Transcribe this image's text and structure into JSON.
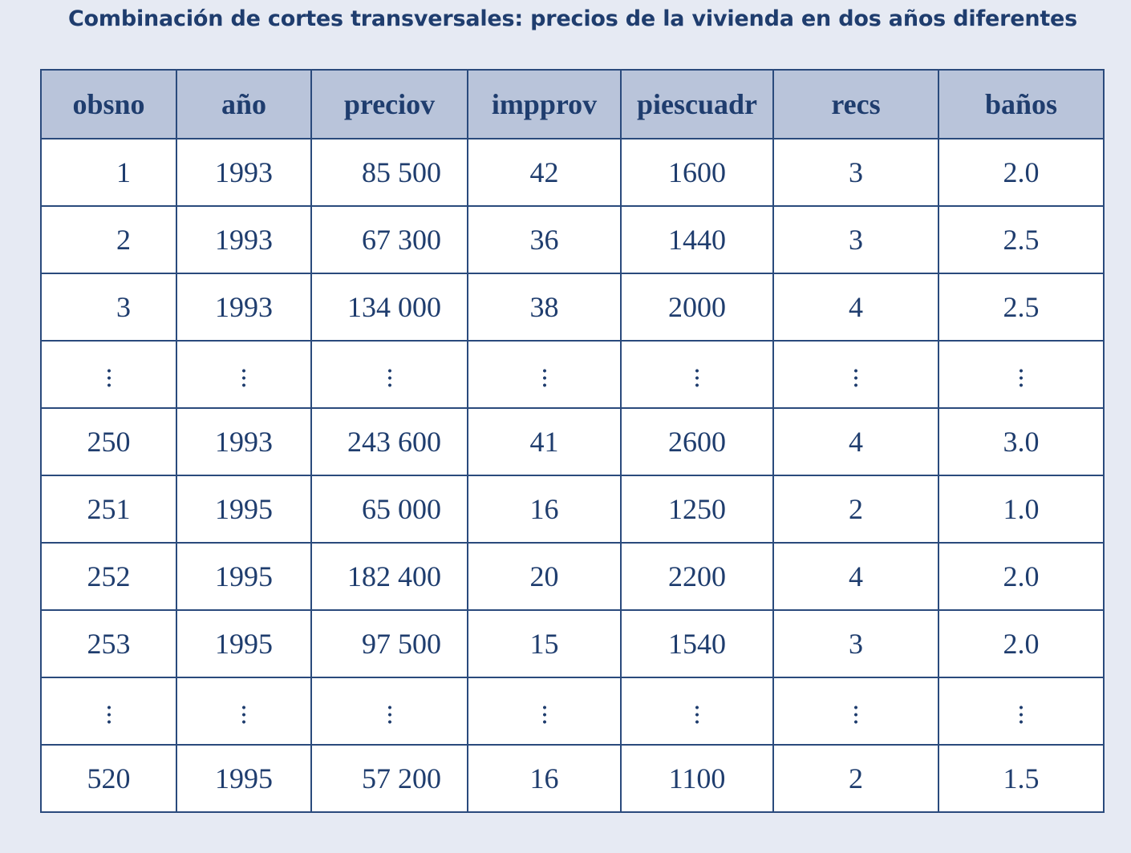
{
  "title": "Combinación de cortes transversales: precios de la vivienda en dos años diferentes",
  "table": {
    "headers": [
      "obsno",
      "año",
      "preciov",
      "impprov",
      "piescuadr",
      "recs",
      "baños"
    ],
    "rows": [
      [
        "1",
        "1993",
        "85 500",
        "42",
        "1600",
        "3",
        "2.0"
      ],
      [
        "2",
        "1993",
        "67 300",
        "36",
        "1440",
        "3",
        "2.5"
      ],
      [
        "3",
        "1993",
        "134 000",
        "38",
        "2000",
        "4",
        "2.5"
      ],
      [
        "⋮",
        "⋮",
        "⋮",
        "⋮",
        "⋮",
        "⋮",
        "⋮"
      ],
      [
        "250",
        "1993",
        "243 600",
        "41",
        "2600",
        "4",
        "3.0"
      ],
      [
        "251",
        "1995",
        "65 000",
        "16",
        "1250",
        "2",
        "1.0"
      ],
      [
        "252",
        "1995",
        "182 400",
        "20",
        "2200",
        "4",
        "2.0"
      ],
      [
        "253",
        "1995",
        "97 500",
        "15",
        "1540",
        "3",
        "2.0"
      ],
      [
        "⋮",
        "⋮",
        "⋮",
        "⋮",
        "⋮",
        "⋮",
        "⋮"
      ],
      [
        "520",
        "1995",
        "57 200",
        "16",
        "1100",
        "2",
        "1.5"
      ]
    ]
  },
  "colors": {
    "background": "#e6eaf3",
    "header_fill": "#b9c4da",
    "text": "#1f3d6e",
    "border": "#2a4a7c"
  }
}
